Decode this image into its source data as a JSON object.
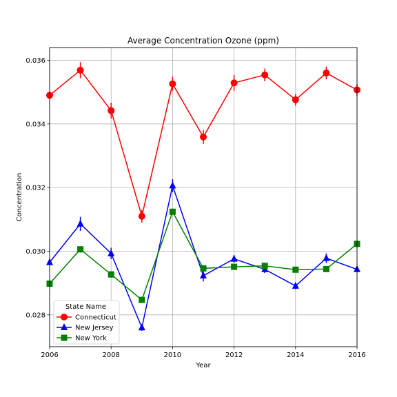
{
  "chart_data": {
    "type": "line",
    "title": "Average Concentration Ozone (ppm)",
    "xlabel": "Year",
    "ylabel": "Concentration",
    "xlim": [
      2006,
      2016
    ],
    "ylim": [
      0.027,
      0.0364
    ],
    "xticks": [
      2006,
      2008,
      2010,
      2012,
      2014,
      2016
    ],
    "xtick_labels": [
      "2006",
      "2008",
      "2010",
      "2012",
      "2014",
      "2016"
    ],
    "yticks": [
      0.028,
      0.03,
      0.032,
      0.034,
      0.036
    ],
    "ytick_labels": [
      "0.028",
      "0.030",
      "0.032",
      "0.034",
      "0.036"
    ],
    "grid": true,
    "legend": {
      "title": "State Name",
      "position": "lower-left"
    },
    "x": [
      2006,
      2007,
      2008,
      2009,
      2010,
      2011,
      2012,
      2013,
      2014,
      2015,
      2016
    ],
    "series": [
      {
        "name": "Connecticut",
        "color": "#ff0000",
        "marker": "circle",
        "values": [
          0.0349,
          0.03569,
          0.03442,
          0.0311,
          0.03526,
          0.03359,
          0.03529,
          0.03554,
          0.03476,
          0.0356,
          0.03507
        ],
        "errors": [
          0.0001,
          0.00025,
          0.00025,
          0.0002,
          0.00022,
          0.00022,
          0.00025,
          0.0002,
          0.00018,
          0.0002,
          0.00018
        ]
      },
      {
        "name": "New Jersey",
        "color": "#0000ff",
        "marker": "triangle",
        "values": [
          0.02965,
          0.03086,
          0.02993,
          0.0276,
          0.03206,
          0.02923,
          0.02976,
          0.02943,
          0.02891,
          0.02978,
          0.02943
        ],
        "errors": [
          8e-05,
          0.00022,
          0.00018,
          0.0001,
          0.0002,
          0.00018,
          0.00012,
          0.00012,
          0.0001,
          0.00015,
          8e-05
        ]
      },
      {
        "name": "New York",
        "color": "#008000",
        "marker": "square",
        "values": [
          0.02898,
          0.03006,
          0.02927,
          0.02847,
          0.03124,
          0.02946,
          0.02951,
          0.02954,
          0.02942,
          0.02944,
          0.03023
        ],
        "errors": [
          8e-05,
          0.0001,
          0.0001,
          8e-05,
          0.0001,
          8e-05,
          8e-05,
          8e-05,
          8e-05,
          8e-05,
          8e-05
        ]
      }
    ]
  }
}
